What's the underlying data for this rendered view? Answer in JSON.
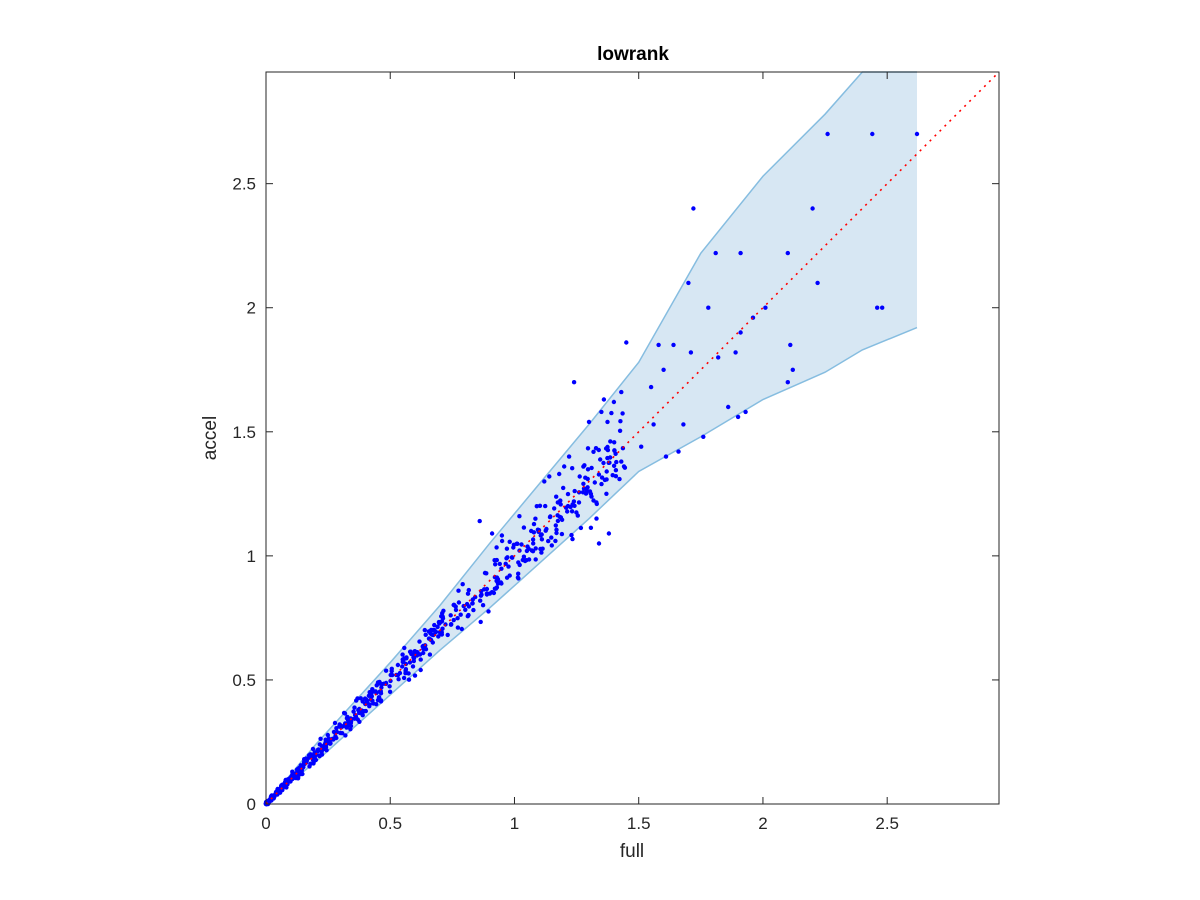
{
  "chart_data": {
    "type": "scatter",
    "title": "lowrank",
    "xlabel": "full",
    "ylabel": "accel",
    "xlim": [
      0,
      2.95
    ],
    "ylim": [
      0,
      2.95
    ],
    "xticks": [
      0,
      0.5,
      1,
      1.5,
      2,
      2.5
    ],
    "yticks": [
      0,
      0.5,
      1,
      1.5,
      2,
      2.5
    ],
    "xtick_labels": [
      "0",
      "0.5",
      "1",
      "1.5",
      "2",
      "2.5"
    ],
    "ytick_labels": [
      "0",
      "0.5",
      "1",
      "1.5",
      "2",
      "2.5"
    ],
    "grid": false,
    "legend": "none",
    "colors": {
      "points": "#0000ff",
      "band_fill": "#d7e7f3",
      "band_edge": "#86bde0",
      "reference_line": "#ff0000",
      "axes": "#262626"
    },
    "reference_line": {
      "x": [
        0,
        2.95
      ],
      "y": [
        0,
        2.95
      ],
      "style": "dotted"
    },
    "band": {
      "x": [
        0,
        0.1,
        0.2,
        0.3,
        0.5,
        0.7,
        0.9,
        1.1,
        1.3,
        1.5,
        1.75,
        2.0,
        2.25,
        2.4,
        2.62
      ],
      "upper": [
        0,
        0.12,
        0.24,
        0.35,
        0.57,
        0.8,
        1.05,
        1.29,
        1.53,
        1.78,
        2.22,
        2.53,
        2.78,
        2.95,
        2.95
      ],
      "lower": [
        0,
        0.09,
        0.17,
        0.26,
        0.44,
        0.62,
        0.79,
        0.97,
        1.15,
        1.34,
        1.48,
        1.63,
        1.74,
        1.83,
        1.92
      ]
    },
    "outliers": {
      "x": [
        2.26,
        2.44,
        2.62,
        2.2,
        1.72,
        1.7,
        1.78,
        1.81,
        1.91,
        1.89,
        2.01,
        2.22,
        2.1,
        2.46,
        2.48,
        1.64,
        1.71,
        1.58,
        1.61,
        1.96,
        1.91,
        2.11,
        2.12,
        2.1,
        1.82,
        1.86,
        1.93,
        1.66,
        1.55,
        1.4,
        1.43,
        1.45,
        1.24,
        1.3,
        1.35,
        1.22,
        1.36,
        1.18,
        1.2,
        1.43,
        1.6,
        1.51,
        1.56,
        1.68,
        1.76,
        1.9,
        1.14,
        1.34,
        1.38,
        1.37,
        1.33,
        0.86,
        0.91,
        0.95,
        1.02,
        1.05,
        1.09,
        1.12
      ],
      "y": [
        2.7,
        2.7,
        2.7,
        2.4,
        2.4,
        2.1,
        2.0,
        2.22,
        2.22,
        1.82,
        2.0,
        2.1,
        2.22,
        2.0,
        2.0,
        1.85,
        1.82,
        1.85,
        1.4,
        1.96,
        1.9,
        1.85,
        1.75,
        1.7,
        1.8,
        1.6,
        1.58,
        1.42,
        1.68,
        1.62,
        1.66,
        1.86,
        1.7,
        1.54,
        1.58,
        1.4,
        1.63,
        1.33,
        1.36,
        1.38,
        1.75,
        1.44,
        1.53,
        1.53,
        1.48,
        1.56,
        1.32,
        1.05,
        1.09,
        1.25,
        1.15,
        1.14,
        1.09,
        1.06,
        1.16,
        1.02,
        1.2,
        1.3
      ]
    },
    "bulk": {
      "count": 620,
      "x_range": [
        0,
        1.45
      ],
      "center": "y = x",
      "spread": "grows with x"
    }
  }
}
